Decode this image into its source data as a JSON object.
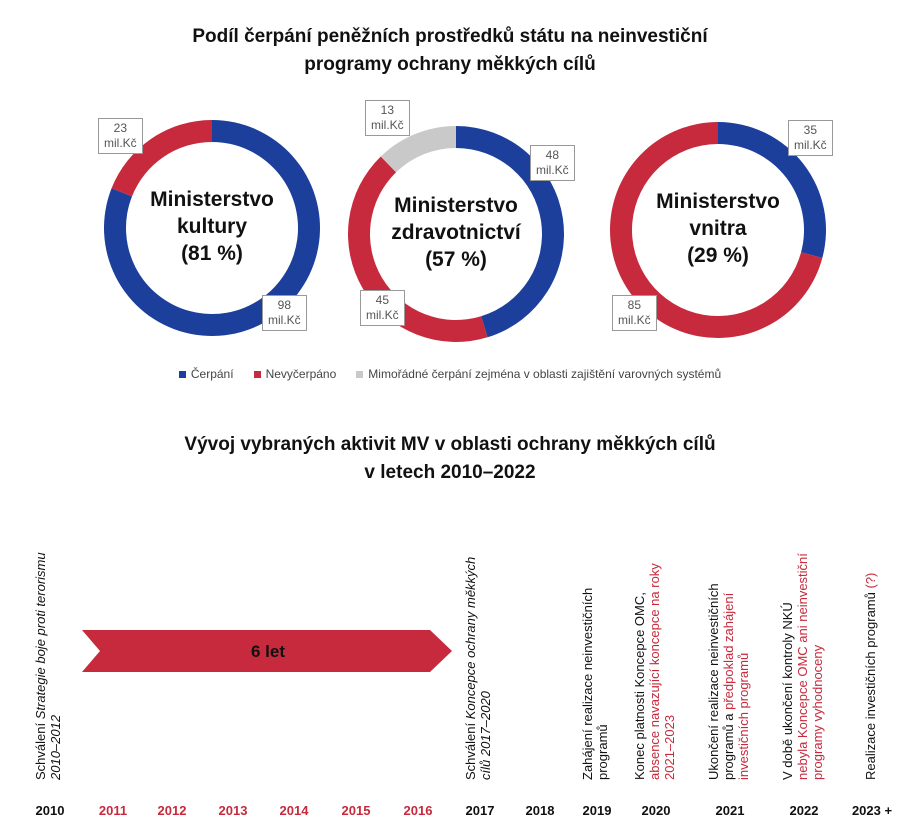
{
  "title": [
    "Podíl čerpání peněžních prostředků státu na neinvestiční",
    "programy ochrany měkkých cílů"
  ],
  "legend": [
    {
      "name": "Čerpání",
      "color": "#1c3f9c"
    },
    {
      "name": "Nevyčerpáno",
      "color": "#c62a3c"
    },
    {
      "name": "Mimořádné čerpání zejména v oblasti zajištění varovných systémů",
      "color": "#c9c9c9"
    }
  ],
  "chart_data": [
    {
      "type": "donut",
      "label": [
        "Ministerstvo",
        "kultury",
        "(81 %)"
      ],
      "values": [
        98,
        23
      ],
      "value_labels": [
        "98\nmil.Kč",
        "23\nmil.Kč"
      ],
      "colors": [
        "#1c3f9c",
        "#c62a3c"
      ]
    },
    {
      "type": "donut",
      "label": [
        "Ministerstvo",
        "zdravotnictví",
        "(57 %)"
      ],
      "values": [
        48,
        45,
        13
      ],
      "value_labels": [
        "48\nmil.Kč",
        "45\nmil.Kč",
        "13\nmil.Kč"
      ],
      "colors": [
        "#1c3f9c",
        "#c62a3c",
        "#c9c9c9"
      ]
    },
    {
      "type": "donut",
      "label": [
        "Ministerstvo",
        "vnitra",
        "(29 %)"
      ],
      "values": [
        35,
        85
      ],
      "value_labels": [
        "35\nmil.Kč",
        "85\nmil.Kč"
      ],
      "colors": [
        "#1c3f9c",
        "#c62a3c"
      ]
    }
  ],
  "timeline": {
    "title": [
      "Vývoj vybraných aktivit MV v oblasti ochrany měkkých cílů",
      "v letech 2010–2022"
    ],
    "arrow_label": "6 let",
    "arrow_color": "#c62a3c",
    "years": [
      {
        "year": "2010",
        "highlight": false,
        "event": [
          [
            {
              "text": "Schválení ",
              "style": "normal"
            },
            {
              "text": "Strategie boje proti terorismu",
              "style": "italic"
            }
          ],
          [
            {
              "text": "2010–2012",
              "style": "italic"
            }
          ]
        ]
      },
      {
        "year": "2011",
        "highlight": true
      },
      {
        "year": "2012",
        "highlight": true
      },
      {
        "year": "2013",
        "highlight": true
      },
      {
        "year": "2014",
        "highlight": true
      },
      {
        "year": "2015",
        "highlight": true
      },
      {
        "year": "2016",
        "highlight": true
      },
      {
        "year": "2017",
        "highlight": false,
        "event": [
          [
            {
              "text": "Schválení ",
              "style": "normal"
            },
            {
              "text": "Koncepce ochrany měkkých",
              "style": "italic"
            }
          ],
          [
            {
              "text": "cílů 2017–2020",
              "style": "italic"
            }
          ]
        ]
      },
      {
        "year": "2018",
        "highlight": false
      },
      {
        "year": "2019",
        "highlight": false,
        "event": [
          [
            {
              "text": "Zahájení realizace neinvestičních",
              "style": "normal"
            }
          ],
          [
            {
              "text": "programů",
              "style": "normal"
            }
          ]
        ]
      },
      {
        "year": "2020",
        "highlight": false,
        "event": [
          [
            {
              "text": "Konec platnosti Koncepce OMC,",
              "style": "normal"
            }
          ],
          [
            {
              "text": "absence navazující koncepce na roky",
              "style": "red"
            }
          ],
          [
            {
              "text": "2021–2023",
              "style": "red"
            }
          ]
        ]
      },
      {
        "year": "2021",
        "highlight": false,
        "event": [
          [
            {
              "text": "Ukončení realizace neinvestičních",
              "style": "normal"
            }
          ],
          [
            {
              "text": "programů a ",
              "style": "normal"
            },
            {
              "text": "předpoklad zahájení",
              "style": "red"
            }
          ],
          [
            {
              "text": "investičních programů",
              "style": "red"
            }
          ]
        ]
      },
      {
        "year": "2022",
        "highlight": false,
        "event": [
          [
            {
              "text": "V době ukončení kontroly NKÚ",
              "style": "normal"
            }
          ],
          [
            {
              "text": "nebyla Koncepce OMC ani neinvestiční",
              "style": "red"
            }
          ],
          [
            {
              "text": "programy vyhodnoceny",
              "style": "red"
            }
          ]
        ]
      },
      {
        "year": "2023 +",
        "highlight": false,
        "event": [
          [
            {
              "text": "Realizace investičních programů ",
              "style": "normal"
            },
            {
              "text": "(?)",
              "style": "red"
            }
          ]
        ]
      }
    ]
  }
}
